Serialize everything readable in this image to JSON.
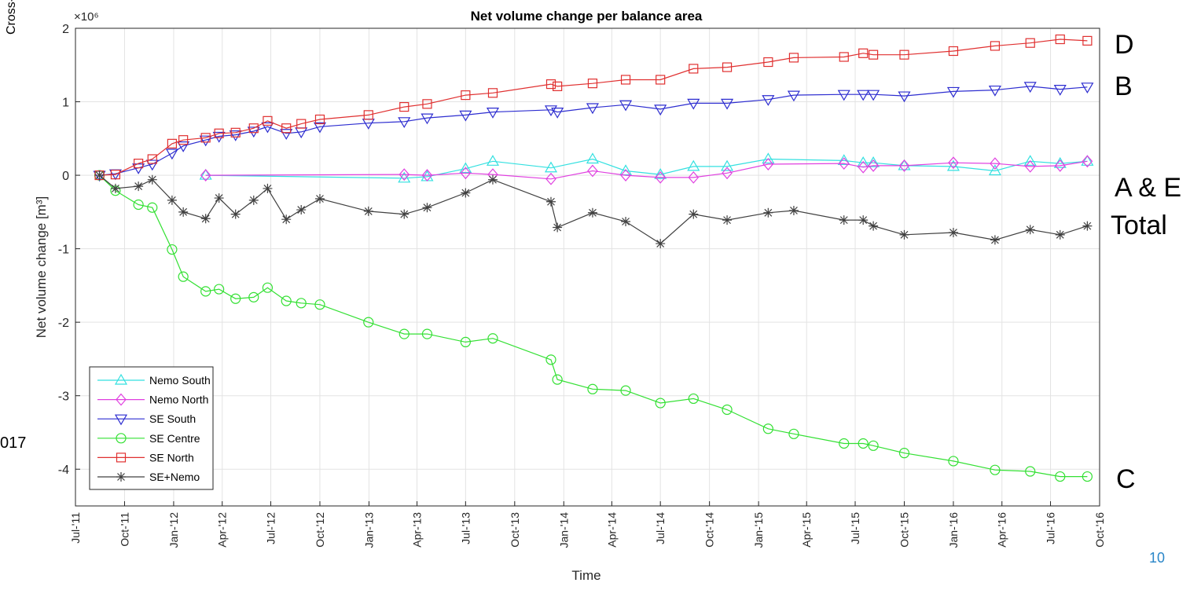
{
  "slide": {
    "cropped_left_top": "Cross-",
    "cropped_left_mid": "017",
    "page_number": "10",
    "labels": [
      "D",
      "B",
      "A & E",
      "Total",
      "C"
    ]
  },
  "chart_data": {
    "type": "line",
    "title": "Net volume change per balance area",
    "xlabel": "Time",
    "ylabel": "Net volume change [m³]",
    "y_exponent": "×10⁶",
    "ylim": [
      -4.5,
      2
    ],
    "yticks": [
      2,
      1,
      0,
      -1,
      -2,
      -3,
      -4
    ],
    "ytick_labels": [
      "2",
      "1",
      "0",
      "-1",
      "-2",
      "-3",
      "-4"
    ],
    "xlim": [
      "2011-07-01",
      "2016-10-01"
    ],
    "xticks": [
      "2011-07-01",
      "2011-10-01",
      "2012-01-01",
      "2012-04-01",
      "2012-07-01",
      "2012-10-01",
      "2013-01-01",
      "2013-04-01",
      "2013-07-01",
      "2013-10-01",
      "2014-01-01",
      "2014-04-01",
      "2014-07-01",
      "2014-10-01",
      "2015-01-01",
      "2015-04-01",
      "2015-07-01",
      "2015-10-01",
      "2016-01-01",
      "2016-04-01",
      "2016-07-01",
      "2016-10-01"
    ],
    "xtick_labels": [
      "Jul-'11",
      "Oct-'11",
      "Jan-'12",
      "Apr-'12",
      "Jul-'12",
      "Oct-'12",
      "Jan-'13",
      "Apr-'13",
      "Jul-'13",
      "Oct-'13",
      "Jan-'14",
      "Apr-'14",
      "Jul-'14",
      "Oct-'14",
      "Jan-'15",
      "Apr-'15",
      "Jul-'15",
      "Oct-'15",
      "Jan-'16",
      "Apr-'16",
      "Jul-'16",
      "Oct-'16"
    ],
    "grid": true,
    "legend_position": "bottom-left",
    "series": [
      {
        "name": "Nemo South",
        "color": "#33e0e0",
        "marker": "triangle-up",
        "x": [
          "2012-03-01",
          "2013-03-08",
          "2013-04-20",
          "2013-07-01",
          "2013-08-21",
          "2013-12-08",
          "2014-02-24",
          "2014-04-27",
          "2014-07-01",
          "2014-09-01",
          "2014-11-03",
          "2015-01-19",
          "2015-06-10",
          "2015-07-16",
          "2015-08-04",
          "2015-10-01",
          "2016-01-01",
          "2016-03-19",
          "2016-05-24",
          "2016-07-19",
          "2016-09-08"
        ],
        "y": [
          0.0,
          -0.04,
          -0.02,
          0.09,
          0.19,
          0.1,
          0.22,
          0.06,
          0.01,
          0.12,
          0.12,
          0.22,
          0.2,
          0.17,
          0.17,
          0.13,
          0.12,
          0.06,
          0.19,
          0.16,
          0.19
        ]
      },
      {
        "name": "Nemo North",
        "color": "#e040e0",
        "marker": "diamond",
        "x": [
          "2012-03-01",
          "2013-03-08",
          "2013-04-20",
          "2013-07-01",
          "2013-08-21",
          "2013-12-08",
          "2014-02-24",
          "2014-04-27",
          "2014-07-01",
          "2014-09-01",
          "2014-11-03",
          "2015-01-19",
          "2015-06-10",
          "2015-07-16",
          "2015-08-04",
          "2015-10-01",
          "2016-01-01",
          "2016-03-19",
          "2016-05-24",
          "2016-07-19",
          "2016-09-08"
        ],
        "y": [
          0.0,
          0.01,
          0.0,
          0.03,
          0.01,
          -0.05,
          0.06,
          0.0,
          -0.03,
          -0.03,
          0.03,
          0.15,
          0.16,
          0.11,
          0.13,
          0.13,
          0.17,
          0.16,
          0.12,
          0.13,
          0.19
        ]
      },
      {
        "name": "SE South",
        "color": "#2d2dd0",
        "marker": "triangle-down",
        "x": [
          "2011-08-15",
          "2011-09-14",
          "2011-10-27",
          "2011-11-22",
          "2011-12-29",
          "2012-01-19",
          "2012-03-01",
          "2012-03-26",
          "2012-04-26",
          "2012-05-30",
          "2012-06-25",
          "2012-07-30",
          "2012-08-27",
          "2012-10-01",
          "2012-12-31",
          "2013-03-08",
          "2013-04-20",
          "2013-07-01",
          "2013-08-21",
          "2013-12-08",
          "2013-12-20",
          "2014-02-24",
          "2014-04-27",
          "2014-07-01",
          "2014-09-01",
          "2014-11-03",
          "2015-01-19",
          "2015-03-08",
          "2015-06-10",
          "2015-07-16",
          "2015-08-04",
          "2015-10-01",
          "2016-01-01",
          "2016-03-19",
          "2016-05-24",
          "2016-07-19",
          "2016-09-08"
        ],
        "y": [
          0.0,
          0.02,
          0.1,
          0.15,
          0.3,
          0.4,
          0.48,
          0.53,
          0.55,
          0.6,
          0.66,
          0.57,
          0.59,
          0.66,
          0.71,
          0.73,
          0.78,
          0.82,
          0.86,
          0.89,
          0.86,
          0.92,
          0.96,
          0.9,
          0.98,
          0.98,
          1.03,
          1.09,
          1.1,
          1.1,
          1.1,
          1.08,
          1.14,
          1.16,
          1.21,
          1.17,
          1.2
        ]
      },
      {
        "name": "SE Centre",
        "color": "#33e033",
        "marker": "circle",
        "x": [
          "2011-08-15",
          "2011-09-14",
          "2011-10-27",
          "2011-11-22",
          "2011-12-29",
          "2012-01-19",
          "2012-03-01",
          "2012-03-26",
          "2012-04-26",
          "2012-05-30",
          "2012-06-25",
          "2012-07-30",
          "2012-08-27",
          "2012-10-01",
          "2012-12-31",
          "2013-03-08",
          "2013-04-20",
          "2013-07-01",
          "2013-08-21",
          "2013-12-08",
          "2013-12-20",
          "2014-02-24",
          "2014-04-27",
          "2014-07-01",
          "2014-09-01",
          "2014-11-03",
          "2015-01-19",
          "2015-03-08",
          "2015-06-10",
          "2015-07-16",
          "2015-08-04",
          "2015-10-01",
          "2016-01-01",
          "2016-03-19",
          "2016-05-24",
          "2016-07-19",
          "2016-09-08"
        ],
        "y": [
          0.0,
          -0.21,
          -0.4,
          -0.44,
          -1.01,
          -1.38,
          -1.58,
          -1.55,
          -1.68,
          -1.66,
          -1.53,
          -1.71,
          -1.74,
          -1.76,
          -2.0,
          -2.16,
          -2.16,
          -2.27,
          -2.22,
          -2.51,
          -2.78,
          -2.91,
          -2.93,
          -3.1,
          -3.04,
          -3.19,
          -3.45,
          -3.52,
          -3.65,
          -3.65,
          -3.68,
          -3.78,
          -3.89,
          -4.01,
          -4.03,
          -4.1,
          -4.1
        ]
      },
      {
        "name": "SE North",
        "color": "#e03030",
        "marker": "square",
        "x": [
          "2011-08-15",
          "2011-09-14",
          "2011-10-27",
          "2011-11-22",
          "2011-12-29",
          "2012-01-19",
          "2012-03-01",
          "2012-03-26",
          "2012-04-26",
          "2012-05-30",
          "2012-06-25",
          "2012-07-30",
          "2012-08-27",
          "2012-10-01",
          "2012-12-31",
          "2013-03-08",
          "2013-04-20",
          "2013-07-01",
          "2013-08-21",
          "2013-12-08",
          "2013-12-20",
          "2014-02-24",
          "2014-04-27",
          "2014-07-01",
          "2014-09-01",
          "2014-11-03",
          "2015-01-19",
          "2015-03-08",
          "2015-06-10",
          "2015-07-16",
          "2015-08-04",
          "2015-10-01",
          "2016-01-01",
          "2016-03-19",
          "2016-05-24",
          "2016-07-19",
          "2016-09-08"
        ],
        "y": [
          0.0,
          0.01,
          0.16,
          0.22,
          0.43,
          0.48,
          0.51,
          0.57,
          0.58,
          0.64,
          0.74,
          0.64,
          0.7,
          0.76,
          0.82,
          0.93,
          0.97,
          1.09,
          1.12,
          1.24,
          1.21,
          1.25,
          1.3,
          1.3,
          1.45,
          1.47,
          1.54,
          1.6,
          1.61,
          1.66,
          1.64,
          1.64,
          1.69,
          1.76,
          1.8,
          1.85,
          1.83
        ]
      },
      {
        "name": "SE+Nemo",
        "color": "#404040",
        "marker": "asterisk",
        "x": [
          "2011-08-15",
          "2011-09-14",
          "2011-10-27",
          "2011-11-22",
          "2011-12-29",
          "2012-01-19",
          "2012-03-01",
          "2012-03-26",
          "2012-04-26",
          "2012-05-30",
          "2012-06-25",
          "2012-07-30",
          "2012-08-27",
          "2012-10-01",
          "2012-12-31",
          "2013-03-08",
          "2013-04-20",
          "2013-07-01",
          "2013-08-21",
          "2013-12-08",
          "2013-12-20",
          "2014-02-24",
          "2014-04-27",
          "2014-07-01",
          "2014-09-01",
          "2014-11-03",
          "2015-01-19",
          "2015-03-08",
          "2015-06-10",
          "2015-07-16",
          "2015-08-04",
          "2015-10-01",
          "2016-01-01",
          "2016-03-19",
          "2016-05-24",
          "2016-07-19",
          "2016-09-08"
        ],
        "y": [
          0.0,
          -0.18,
          -0.15,
          -0.06,
          -0.34,
          -0.5,
          -0.59,
          -0.31,
          -0.53,
          -0.34,
          -0.18,
          -0.6,
          -0.47,
          -0.32,
          -0.49,
          -0.53,
          -0.44,
          -0.24,
          -0.06,
          -0.36,
          -0.71,
          -0.51,
          -0.63,
          -0.93,
          -0.53,
          -0.61,
          -0.51,
          -0.48,
          -0.61,
          -0.61,
          -0.69,
          -0.81,
          -0.78,
          -0.88,
          -0.74,
          -0.81,
          -0.69
        ]
      }
    ]
  }
}
